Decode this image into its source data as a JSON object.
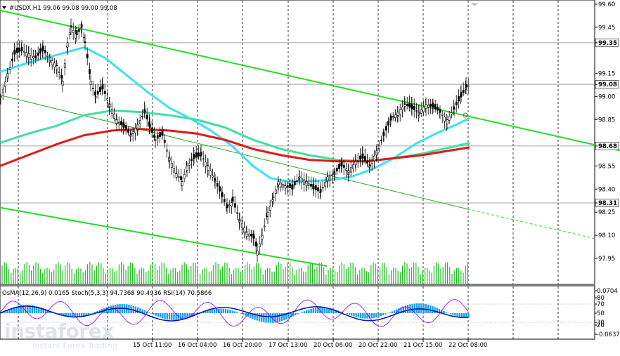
{
  "chart_data": {
    "type": "candlestick",
    "header": {
      "symbol_line": "#USDX,H1  99.06 99.08 99.00 99.08"
    },
    "price_axis": {
      "ticks": [
        "99.60",
        "99.45",
        "99.35",
        "99.15",
        "99.08",
        "99.00",
        "98.85",
        "98.68",
        "98.55",
        "98.40",
        "98.31",
        "98.25",
        "98.10",
        "97.95"
      ],
      "highlighted": [
        "99.35",
        "99.08",
        "98.68",
        "98.31"
      ],
      "ylim": [
        97.93,
        99.62
      ]
    },
    "time_axis": {
      "labels": [
        "15 Oct 11:00",
        "16 Oct 04:00",
        "16 Oct 20:00",
        "17 Oct 13:00",
        "20 Oct 06:00",
        "20 Oct 22:00",
        "21 Oct 15:00",
        "22 Oct 08:00"
      ]
    },
    "horizontal_levels": [
      99.35,
      99.08,
      98.68,
      98.31
    ],
    "moving_averages": [
      {
        "color": "#40e0f0",
        "points": [
          [
            0,
            99.16
          ],
          [
            40,
            99.22
          ],
          [
            80,
            99.27
          ],
          [
            120,
            99.32
          ],
          [
            150,
            99.25
          ],
          [
            180,
            99.14
          ],
          [
            210,
            99.03
          ],
          [
            240,
            98.93
          ],
          [
            270,
            98.86
          ],
          [
            300,
            98.78
          ],
          [
            330,
            98.68
          ],
          [
            360,
            98.55
          ],
          [
            385,
            98.47
          ],
          [
            410,
            98.45
          ],
          [
            440,
            98.45
          ],
          [
            470,
            98.46
          ],
          [
            500,
            98.48
          ],
          [
            530,
            98.53
          ],
          [
            560,
            98.6
          ],
          [
            590,
            98.69
          ],
          [
            620,
            98.76
          ],
          [
            650,
            98.82
          ],
          [
            668,
            98.86
          ]
        ]
      },
      {
        "color": "#40e0a0",
        "points": [
          [
            0,
            98.7
          ],
          [
            40,
            98.76
          ],
          [
            80,
            98.81
          ],
          [
            120,
            98.88
          ],
          [
            160,
            98.91
          ],
          [
            200,
            98.9
          ],
          [
            240,
            98.88
          ],
          [
            280,
            98.85
          ],
          [
            320,
            98.8
          ],
          [
            360,
            98.72
          ],
          [
            400,
            98.66
          ],
          [
            440,
            98.62
          ],
          [
            480,
            98.59
          ],
          [
            520,
            98.58
          ],
          [
            560,
            98.6
          ],
          [
            600,
            98.63
          ],
          [
            640,
            98.67
          ],
          [
            668,
            98.7
          ]
        ]
      },
      {
        "color": "#e01818",
        "points": [
          [
            0,
            98.55
          ],
          [
            40,
            98.62
          ],
          [
            80,
            98.69
          ],
          [
            120,
            98.75
          ],
          [
            160,
            98.78
          ],
          [
            200,
            98.79
          ],
          [
            240,
            98.78
          ],
          [
            280,
            98.76
          ],
          [
            320,
            98.72
          ],
          [
            360,
            98.66
          ],
          [
            400,
            98.62
          ],
          [
            440,
            98.59
          ],
          [
            480,
            98.58
          ],
          [
            520,
            98.58
          ],
          [
            560,
            98.6
          ],
          [
            600,
            98.62
          ],
          [
            640,
            98.65
          ],
          [
            668,
            98.67
          ]
        ]
      }
    ],
    "channel_lines": [
      {
        "color": "#22dd22",
        "from": [
          0,
          99.56
        ],
        "to": [
          882,
          98.65
        ],
        "width": 2
      },
      {
        "color": "#22dd22",
        "from": [
          0,
          98.28
        ],
        "to": [
          465,
          97.9
        ],
        "width": 2
      },
      {
        "color": "#22aa22",
        "from": [
          0,
          99.01
        ],
        "to": [
          665,
          98.27
        ],
        "width": 1
      },
      {
        "color": "#22dd22",
        "from": [
          665,
          98.27
        ],
        "to": [
          845,
          98.08
        ],
        "width": 1,
        "dash": true
      }
    ],
    "indicator": {
      "label": "OsMA(12,26,9) 0.0165  Stoch(5,3,3) 94.7368 90.4936  RSI(14) 70.5866",
      "scale_labels": [
        "0.0704",
        "80",
        "70",
        "50",
        "30",
        "20",
        "-0.0637"
      ]
    }
  },
  "branding": {
    "name": "instaforex",
    "tagline": "Instant Forex Trading"
  }
}
